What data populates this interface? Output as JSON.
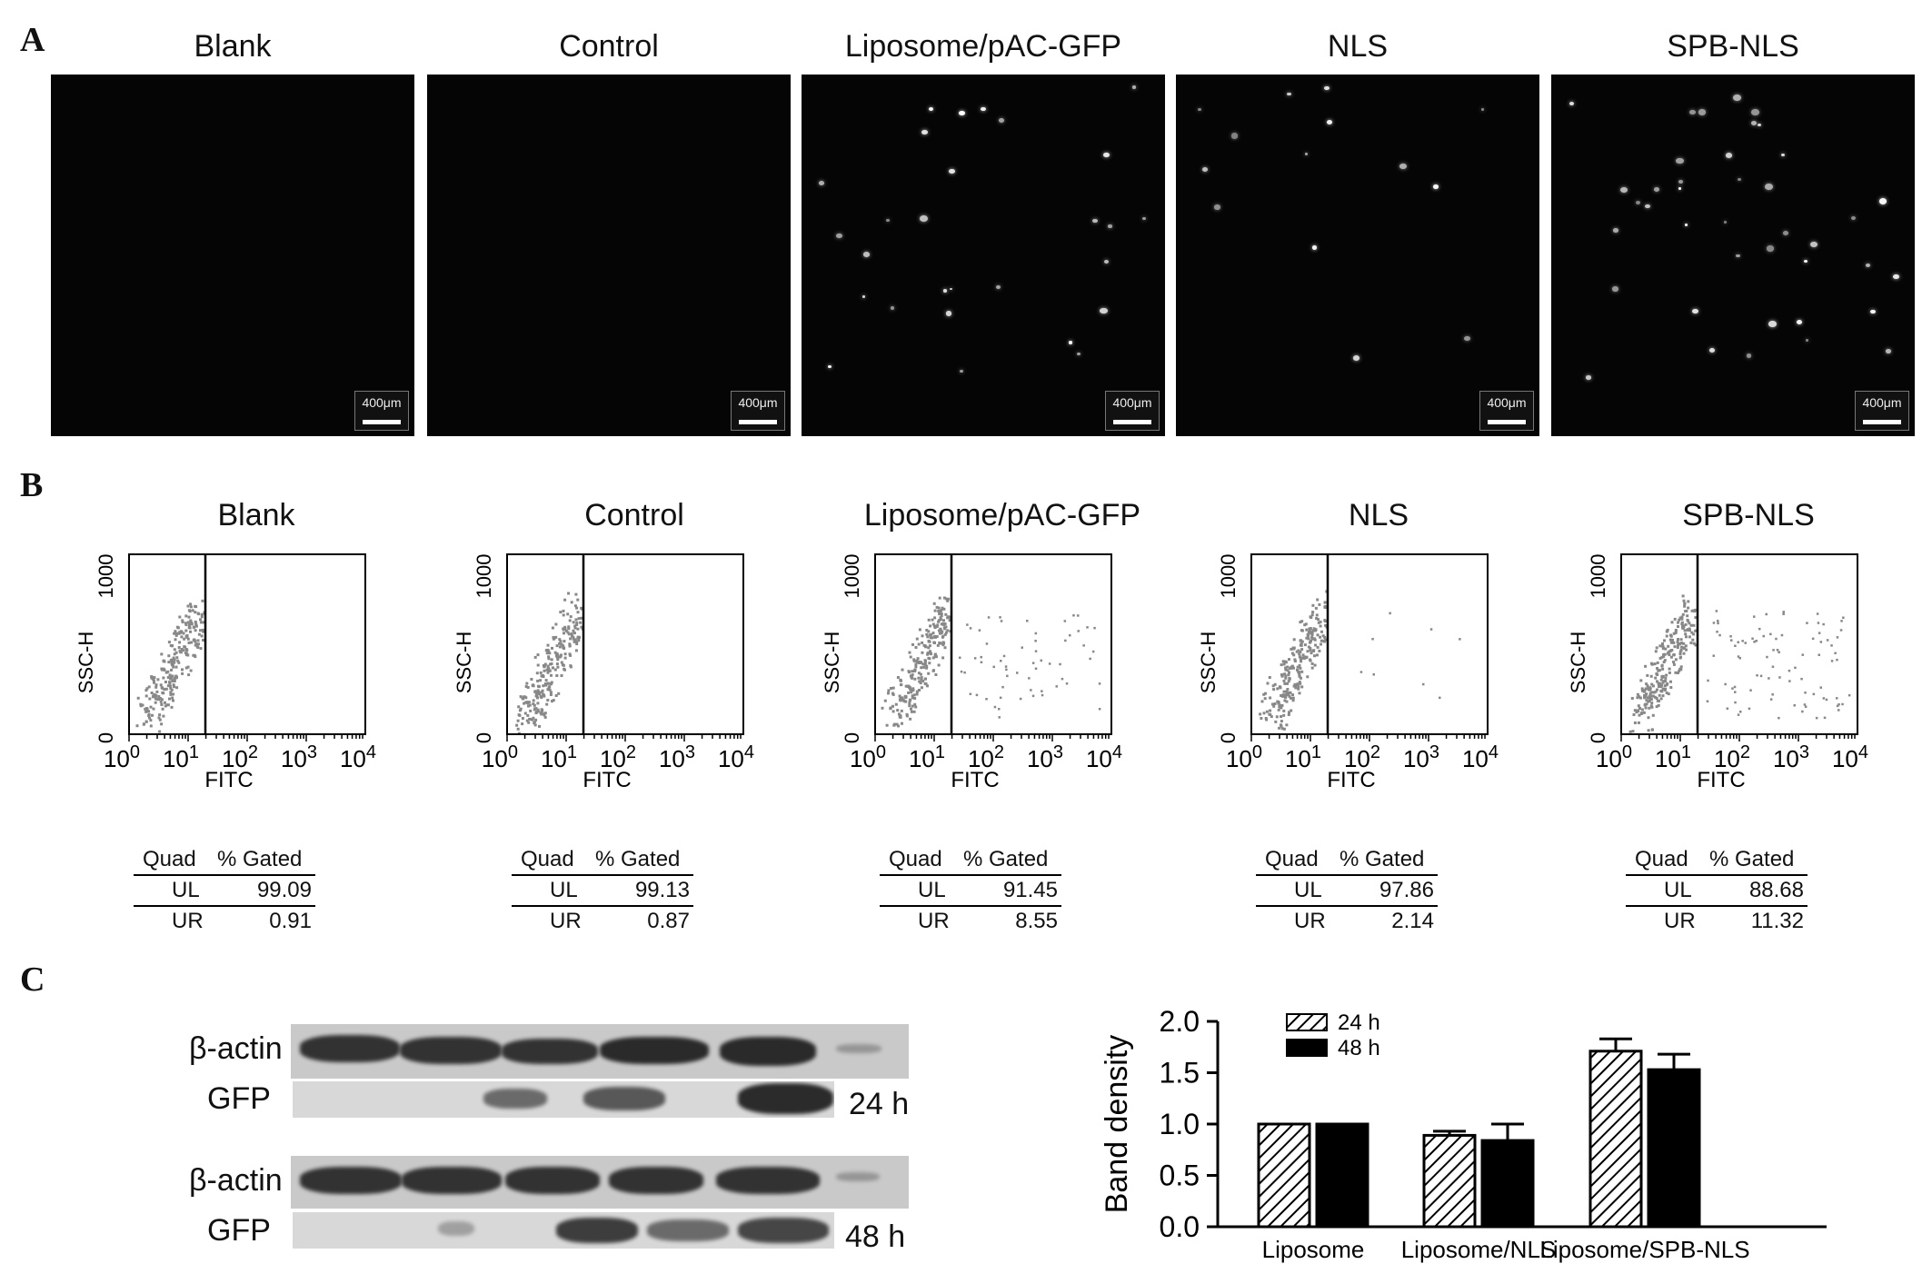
{
  "panel_labels": {
    "a": "A",
    "b": "B",
    "c": "C"
  },
  "groups": [
    "Blank",
    "Control",
    "Liposome/pAC-GFP",
    "NLS",
    "SPB-NLS"
  ],
  "microscopy": {
    "scale_bar": "400μm"
  },
  "flow": {
    "ylabel": "SSC-H",
    "xlabel": "FITC",
    "yticks": [
      "0",
      "1000"
    ],
    "xticks": [
      "10^0",
      "10^1",
      "10^2",
      "10^3",
      "10^4"
    ],
    "table_headers": [
      "Quad",
      "% Gated"
    ],
    "tables": [
      [
        {
          "quad": "UL",
          "pct": "99.09"
        },
        {
          "quad": "UR",
          "pct": "0.91"
        }
      ],
      [
        {
          "quad": "UL",
          "pct": "99.13"
        },
        {
          "quad": "UR",
          "pct": "0.87"
        }
      ],
      [
        {
          "quad": "UL",
          "pct": "91.45"
        },
        {
          "quad": "UR",
          "pct": "8.55"
        }
      ],
      [
        {
          "quad": "UL",
          "pct": "97.86"
        },
        {
          "quad": "UR",
          "pct": "2.14"
        }
      ],
      [
        {
          "quad": "UL",
          "pct": "88.68"
        },
        {
          "quad": "UR",
          "pct": "11.32"
        }
      ]
    ]
  },
  "western": {
    "row_labels": [
      "β-actin",
      "GFP",
      "β-actin",
      "GFP"
    ],
    "time_labels": [
      "24 h",
      "48 h"
    ]
  },
  "chart_data": {
    "type": "bar",
    "categories": [
      "Liposome",
      "Liposome/NLS",
      "Liposome/SPB-NLS"
    ],
    "series": [
      {
        "name": "24 h",
        "values": [
          1.0,
          0.89,
          1.71
        ],
        "errors": [
          0.0,
          0.04,
          0.12
        ]
      },
      {
        "name": "48 h",
        "values": [
          1.0,
          0.84,
          1.53
        ],
        "errors": [
          0.0,
          0.16,
          0.15
        ]
      }
    ],
    "xlabel": "",
    "ylabel": "Band density",
    "ylim": [
      0,
      2.0
    ],
    "yticks": [
      "0.0",
      "0.5",
      "1.0",
      "1.5",
      "2.0"
    ],
    "legend": "top-left",
    "series_fill": [
      "hatched",
      "solid-black"
    ],
    "grid": false
  }
}
